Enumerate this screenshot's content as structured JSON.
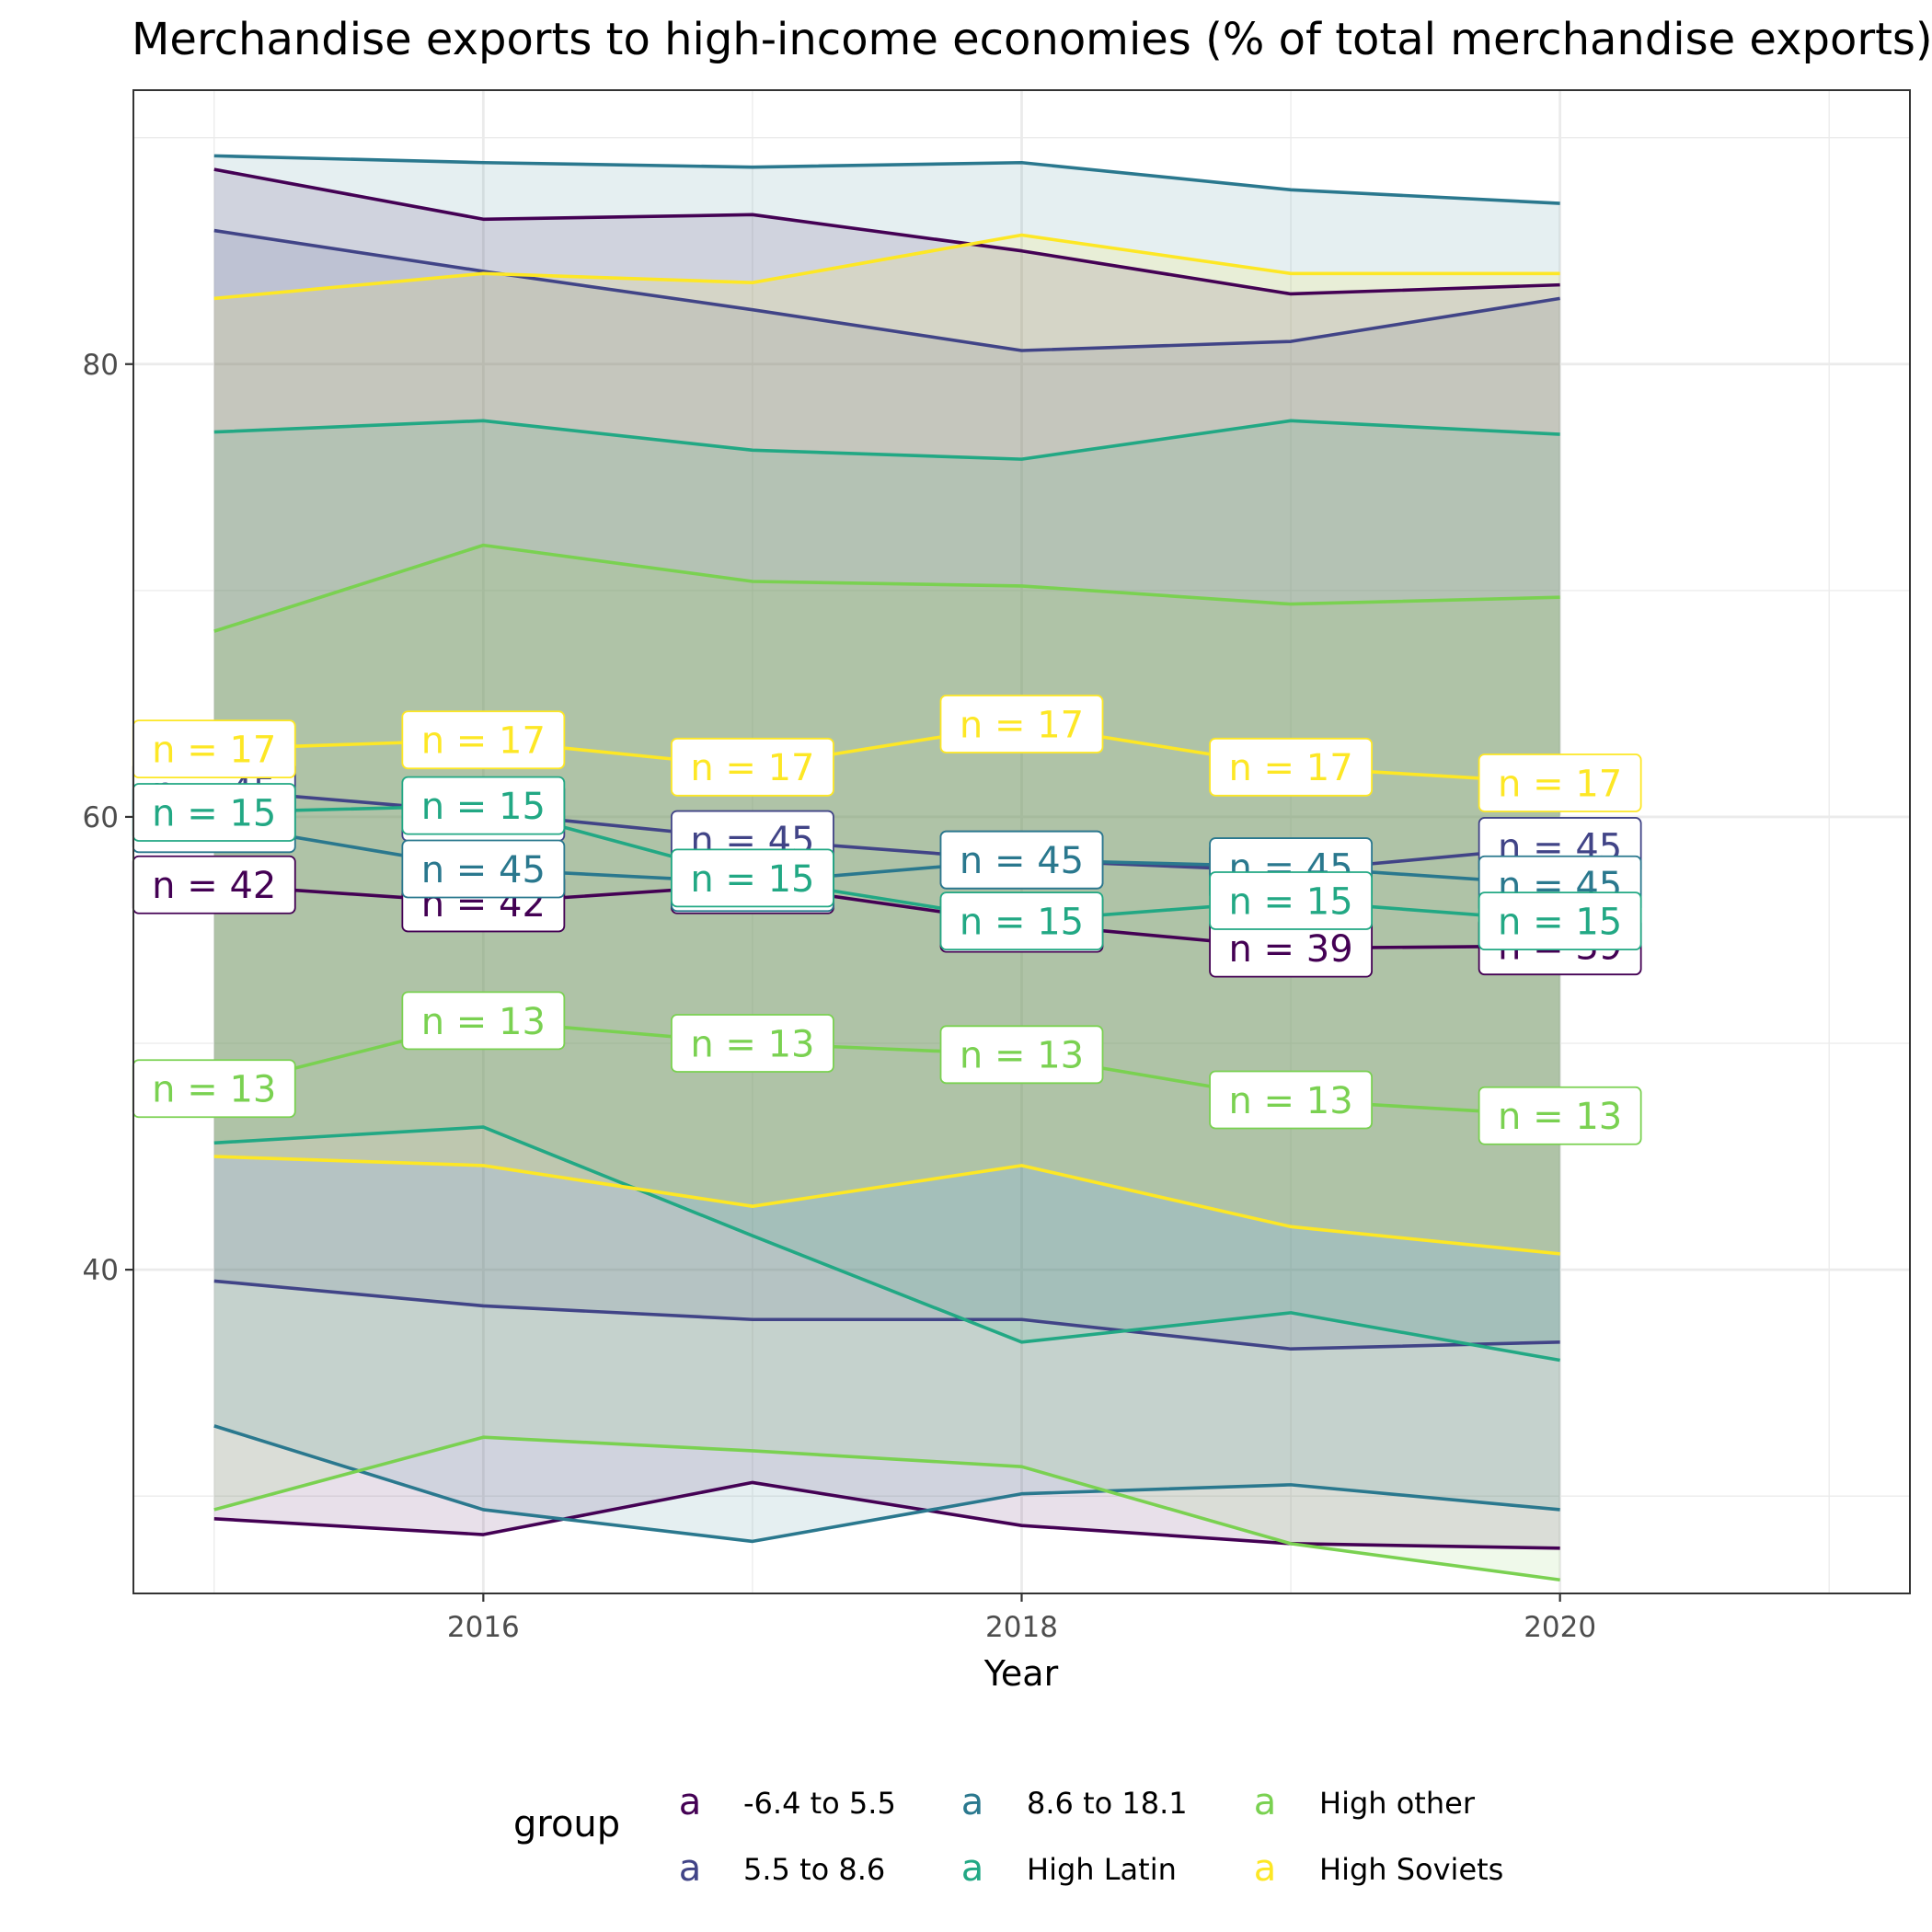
{
  "chart_data": {
    "type": "line",
    "title": "Merchandise exports to high-income economies (% of total merchandise exports)",
    "xlabel": "Year",
    "ylabel": "",
    "x": [
      2015,
      2016,
      2017,
      2018,
      2019,
      2020
    ],
    "xlim": [
      2014.7,
      2021.3
    ],
    "ylim": [
      25.7,
      92.1
    ],
    "x_ticks": [
      2016,
      2018,
      2020
    ],
    "x_tick_labels": [
      "2016",
      "2018",
      "2020"
    ],
    "y_ticks": [
      40,
      60,
      80
    ],
    "y_tick_labels": [
      "40",
      "60",
      "80"
    ],
    "grid": true,
    "legend": {
      "title": "group",
      "position": "bottom",
      "key_glyph": "a",
      "entries": [
        "-6.4 to 5.5",
        "5.5 to 8.6",
        "8.6 to 18.1",
        "High Latin",
        "High other",
        "High Soviets"
      ]
    },
    "series": [
      {
        "name": "-6.4 to 5.5",
        "color": "#440154",
        "upper": [
          88.6,
          86.4,
          86.6,
          85.0,
          83.1,
          83.5
        ],
        "middle": [
          57.0,
          56.2,
          57.0,
          55.3,
          54.2,
          54.3
        ],
        "lower": [
          29.0,
          28.3,
          30.6,
          28.7,
          27.9,
          27.7
        ],
        "labels": [
          "n = 42",
          "n = 42",
          "n = 42",
          "n = 39",
          "n = 39",
          "n = 39"
        ]
      },
      {
        "name": "5.5 to 8.6",
        "color": "#414487",
        "upper": [
          85.9,
          84.1,
          82.4,
          80.6,
          81.0,
          82.9
        ],
        "middle": [
          61.2,
          60.2,
          59.0,
          58.1,
          57.6,
          58.7
        ],
        "lower": [
          39.5,
          38.4,
          37.8,
          37.8,
          36.5,
          36.8
        ],
        "labels": [
          "n = 45",
          "n = 45",
          "n = 45",
          "n = 45",
          "n = 45",
          "n = 45"
        ]
      },
      {
        "name": "8.6 to 18.1",
        "color": "#2A788E",
        "upper": [
          89.2,
          88.9,
          88.7,
          88.9,
          87.7,
          87.1
        ],
        "middle": [
          59.7,
          57.7,
          57.1,
          58.1,
          57.8,
          57.0
        ],
        "lower": [
          33.1,
          29.4,
          28.0,
          30.1,
          30.5,
          29.4
        ],
        "labels": [
          "n = 45",
          "n = 45",
          "n = 45",
          "n = 45",
          "n = 45",
          "n = 45"
        ]
      },
      {
        "name": "High Latin",
        "color": "#22A884",
        "upper": [
          77.0,
          77.5,
          76.2,
          75.8,
          77.5,
          76.9
        ],
        "middle": [
          60.2,
          60.5,
          57.3,
          55.4,
          56.3,
          55.4
        ],
        "lower": [
          45.6,
          46.3,
          41.5,
          36.8,
          38.1,
          36.0
        ],
        "labels": [
          "n = 15",
          "n = 15",
          "n = 15",
          "n = 15",
          "n = 15",
          "n = 15"
        ]
      },
      {
        "name": "High other",
        "color": "#7AD151",
        "upper": [
          68.2,
          72.0,
          70.4,
          70.2,
          69.4,
          69.7
        ],
        "middle": [
          48.0,
          51.0,
          50.0,
          49.5,
          47.5,
          46.8
        ],
        "lower": [
          29.4,
          32.6,
          32.0,
          31.3,
          27.9,
          26.3
        ],
        "labels": [
          "n = 13",
          "n = 13",
          "n = 13",
          "n = 13",
          "n = 13",
          "n = 13"
        ]
      },
      {
        "name": "High Soviets",
        "color": "#FDE725",
        "upper": [
          82.9,
          84.0,
          83.6,
          85.7,
          84.0,
          84.0
        ],
        "middle": [
          63.0,
          63.4,
          62.2,
          64.1,
          62.2,
          61.5
        ],
        "lower": [
          45.0,
          44.6,
          42.8,
          44.6,
          41.9,
          40.7
        ],
        "labels": [
          "n = 17",
          "n = 17",
          "n = 17",
          "n = 17",
          "n = 17",
          "n = 17"
        ]
      }
    ]
  }
}
